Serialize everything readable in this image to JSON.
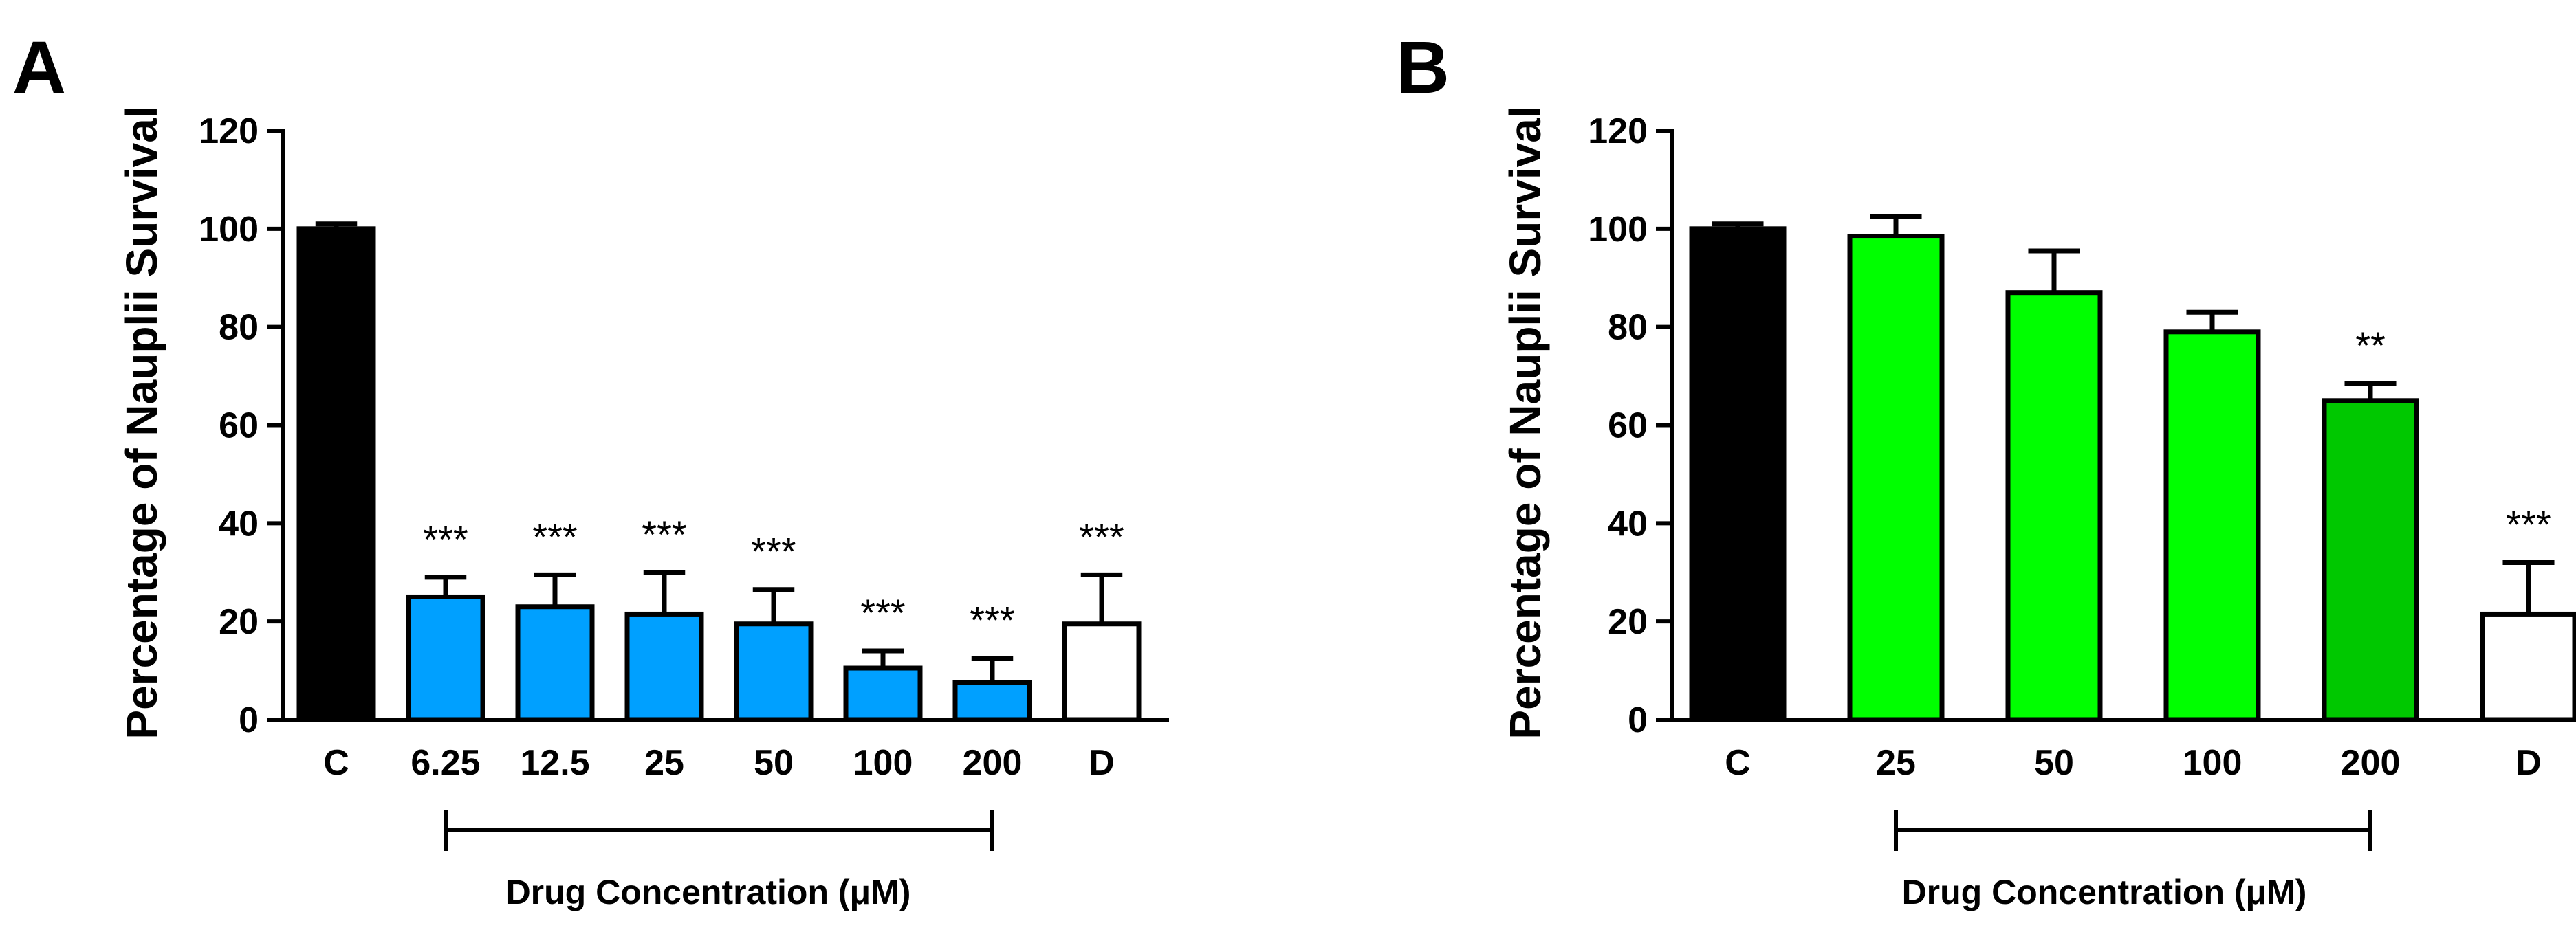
{
  "chart_data": [
    {
      "type": "bar",
      "panel": "A",
      "ylabel": "Percentage of Nauplii Survival",
      "xlabel": "Drug Concentration (μM)",
      "ylim": [
        0,
        120
      ],
      "yticks": [
        0,
        20,
        40,
        60,
        80,
        100,
        120
      ],
      "categories": [
        "C",
        "6.25",
        "12.5",
        "25",
        "50",
        "100",
        "200",
        "D"
      ],
      "values": [
        100,
        25,
        23,
        21.5,
        19.5,
        10.5,
        7.5,
        19.5
      ],
      "errors": [
        1,
        4,
        6.5,
        8.5,
        7,
        3.5,
        5,
        10
      ],
      "fill_colors": [
        "#000000",
        "#00A0FF",
        "#00A0FF",
        "#00A0FF",
        "#00A0FF",
        "#00A0FF",
        "#00A0FF",
        "#FFFFFF"
      ],
      "significance": [
        "",
        "***",
        "***",
        "***",
        "***",
        "***",
        "***",
        "***"
      ],
      "bracket": {
        "from": 1,
        "to": 6,
        "label": "Drug Concentration (μM)"
      }
    },
    {
      "type": "bar",
      "panel": "B",
      "ylabel": "Percentage of Nauplii Survival",
      "xlabel": "Drug Concentration (μM)",
      "ylim": [
        0,
        120
      ],
      "yticks": [
        0,
        20,
        40,
        60,
        80,
        100,
        120
      ],
      "categories": [
        "C",
        "25",
        "50",
        "100",
        "200",
        "D"
      ],
      "values": [
        100,
        98.5,
        87,
        79,
        65,
        21.5
      ],
      "errors": [
        1,
        4,
        8.5,
        4,
        3.5,
        10.5
      ],
      "fill_colors": [
        "#000000",
        "#00FF00",
        "#00FF00",
        "#00FF00",
        "#00C800",
        "#FFFFFF"
      ],
      "significance": [
        "",
        "",
        "",
        "",
        "**",
        "***"
      ],
      "bracket": {
        "from": 1,
        "to": 4,
        "label": "Drug Concentration (μM)"
      }
    }
  ]
}
